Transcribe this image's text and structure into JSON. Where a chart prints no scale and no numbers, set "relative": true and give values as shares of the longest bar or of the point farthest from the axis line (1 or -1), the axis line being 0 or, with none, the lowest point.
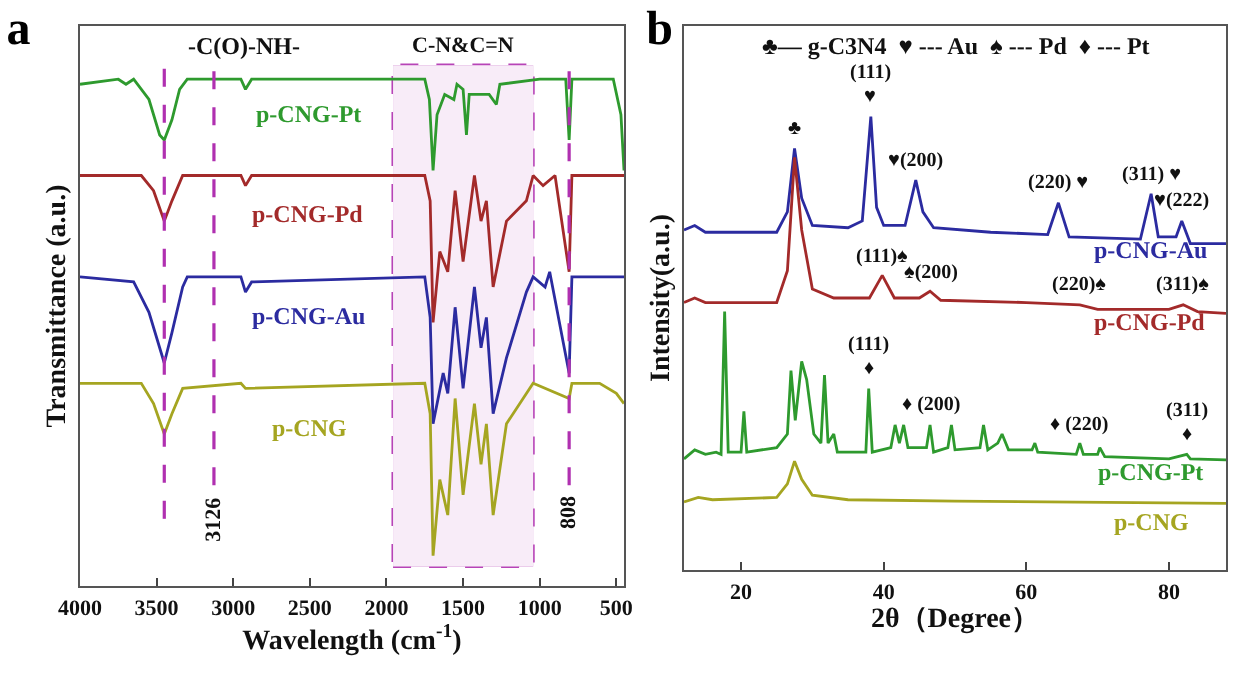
{
  "chart_data": [
    {
      "type": "line",
      "title": "a",
      "xlabel": "Wavelength (cm$^{-1}$)",
      "ylabel": "Transmittance (a.u.)",
      "relative": true,
      "tick_labels": "x",
      "xlim": [
        4000,
        450
      ],
      "xticks": [
        4000,
        3500,
        3000,
        2500,
        2000,
        1500,
        1000,
        500
      ],
      "series": [
        {
          "name": "p-CNG-Pt",
          "color": "#2e9a2e",
          "x": [
            4000,
            3750,
            3700,
            3650,
            3550,
            3480,
            3450,
            3400,
            3350,
            3300,
            2950,
            2920,
            2880,
            1750,
            1720,
            1696,
            1670,
            1620,
            1560,
            1540,
            1500,
            1478,
            1460,
            1330,
            1283,
            1260,
            1000,
            900,
            830,
            808,
            790,
            600,
            520,
            470,
            450
          ],
          "values": [
            0.99,
            1.0,
            0.99,
            1.0,
            0.96,
            0.89,
            0.88,
            0.92,
            0.98,
            1.0,
            1.0,
            0.98,
            1.0,
            1.0,
            0.96,
            0.82,
            0.93,
            0.97,
            0.96,
            0.99,
            0.98,
            0.89,
            0.97,
            0.97,
            0.95,
            0.99,
            1.0,
            1.0,
            1.0,
            0.88,
            1.0,
            1.0,
            1.0,
            0.93,
            0.82
          ]
        },
        {
          "name": "p-CNG-Pd",
          "color": "#a32a2a",
          "x": [
            4000,
            3600,
            3520,
            3450,
            3400,
            3330,
            2950,
            2920,
            2880,
            1750,
            1715,
            1696,
            1652,
            1600,
            1552,
            1500,
            1426,
            1383,
            1348,
            1304,
            1217,
            1087,
            1043,
            978,
            900,
            808,
            790,
            600,
            450
          ],
          "values": [
            0.81,
            0.81,
            0.78,
            0.72,
            0.76,
            0.81,
            0.81,
            0.79,
            0.81,
            0.81,
            0.76,
            0.52,
            0.66,
            0.62,
            0.78,
            0.64,
            0.81,
            0.72,
            0.76,
            0.59,
            0.72,
            0.76,
            0.81,
            0.79,
            0.81,
            0.62,
            0.81,
            0.81,
            0.81
          ]
        },
        {
          "name": "p-CNG-Au",
          "color": "#2b2ba0",
          "x": [
            4000,
            3650,
            3550,
            3450,
            3400,
            3330,
            3300,
            2950,
            2920,
            2880,
            1750,
            1715,
            1696,
            1630,
            1600,
            1552,
            1500,
            1426,
            1383,
            1348,
            1304,
            1217,
            1087,
            1043,
            965,
            935,
            808,
            790,
            600,
            450
          ],
          "values": [
            0.61,
            0.6,
            0.54,
            0.44,
            0.5,
            0.59,
            0.61,
            0.61,
            0.58,
            0.6,
            0.61,
            0.53,
            0.32,
            0.42,
            0.38,
            0.55,
            0.39,
            0.59,
            0.47,
            0.53,
            0.34,
            0.45,
            0.58,
            0.61,
            0.59,
            0.62,
            0.42,
            0.61,
            0.61,
            0.61
          ]
        },
        {
          "name": "p-CNG",
          "color": "#a5a521",
          "x": [
            4000,
            3600,
            3520,
            3450,
            3400,
            3330,
            2950,
            2920,
            1750,
            1715,
            1696,
            1652,
            1600,
            1552,
            1500,
            1426,
            1383,
            1348,
            1304,
            1217,
            1087,
            1043,
            808,
            790,
            609,
            500,
            450
          ],
          "values": [
            0.4,
            0.4,
            0.36,
            0.3,
            0.34,
            0.39,
            0.4,
            0.39,
            0.4,
            0.34,
            0.06,
            0.21,
            0.14,
            0.37,
            0.18,
            0.36,
            0.24,
            0.32,
            0.14,
            0.32,
            0.38,
            0.4,
            0.37,
            0.4,
            0.4,
            0.38,
            0.36
          ]
        }
      ],
      "ref_lines": [
        {
          "axis": "x",
          "value": 3450,
          "color": "#b030b0",
          "line_style": "dashed"
        },
        {
          "axis": "x",
          "value": 3126,
          "label": "3126",
          "color": "#b030b0",
          "line_style": "dashed"
        },
        {
          "axis": "x",
          "value": 808,
          "label": "808",
          "color": "#b030b0",
          "line_style": "dashed"
        }
      ],
      "bands": [
        {
          "axis": "x",
          "from": 1957,
          "to": 1043,
          "label": "C-N&C=N",
          "color": "#b030b0"
        }
      ],
      "annotations": [
        "-C(O)-NH-"
      ]
    },
    {
      "type": "line",
      "title": "b",
      "xlabel": "2θ（Degree）",
      "ylabel": "Intensity(a.u.)",
      "relative": true,
      "tick_labels": "x",
      "xlim": [
        12,
        88
      ],
      "xticks": [
        20,
        40,
        60,
        80
      ],
      "series": [
        {
          "name": "p-CNG-Au",
          "color": "#2b2ba0",
          "x": [
            12,
            13.5,
            15,
            20,
            25,
            26.5,
            27.5,
            28.5,
            30,
            35,
            37,
            38.2,
            39,
            40,
            43,
            44.5,
            45.5,
            47,
            55,
            63,
            64.5,
            66,
            76,
            77.5,
            78.5,
            81,
            81.8,
            83,
            88
          ],
          "values": [
            0.75,
            0.76,
            0.745,
            0.745,
            0.745,
            0.79,
            0.93,
            0.82,
            0.76,
            0.755,
            0.77,
            1.0,
            0.8,
            0.76,
            0.76,
            0.86,
            0.79,
            0.755,
            0.745,
            0.74,
            0.81,
            0.735,
            0.73,
            0.83,
            0.735,
            0.735,
            0.77,
            0.72,
            0.72
          ]
        },
        {
          "name": "p-CNG-Pd",
          "color": "#a32a2a",
          "x": [
            12,
            13.5,
            15,
            25,
            26.5,
            27.5,
            28.5,
            30,
            33,
            38,
            39.8,
            41.5,
            45,
            46.5,
            48,
            60,
            67.5,
            70,
            80,
            82,
            84,
            88
          ],
          "values": [
            0.59,
            0.6,
            0.59,
            0.59,
            0.66,
            0.91,
            0.75,
            0.62,
            0.6,
            0.6,
            0.65,
            0.6,
            0.6,
            0.615,
            0.595,
            0.59,
            0.585,
            0.575,
            0.575,
            0.585,
            0.57,
            0.566
          ]
        },
        {
          "name": "p-CNG-Pt",
          "color": "#2e9a2e",
          "x": [
            12,
            13.5,
            15,
            16.5,
            17.2,
            17.7,
            18.2,
            20,
            20.4,
            20.8,
            25,
            26.5,
            27,
            27.6,
            28.5,
            29.2,
            30.2,
            31.2,
            31.7,
            32.2,
            33,
            33.5,
            37.5,
            37.9,
            38.4,
            41,
            41.6,
            42.2,
            42.8,
            43.4,
            46,
            46.5,
            47,
            49,
            49.5,
            50,
            53.5,
            54,
            54.6,
            56,
            56.6,
            57.5,
            60.8,
            61.2,
            61.6,
            67,
            67.5,
            68,
            70,
            70.3,
            71,
            80,
            82.5,
            83,
            88
          ],
          "values": [
            0.245,
            0.265,
            0.255,
            0.26,
            0.255,
            0.57,
            0.26,
            0.26,
            0.35,
            0.26,
            0.27,
            0.3,
            0.44,
            0.33,
            0.46,
            0.42,
            0.3,
            0.28,
            0.43,
            0.28,
            0.3,
            0.26,
            0.26,
            0.4,
            0.26,
            0.27,
            0.32,
            0.28,
            0.32,
            0.27,
            0.27,
            0.32,
            0.26,
            0.27,
            0.32,
            0.265,
            0.27,
            0.32,
            0.265,
            0.28,
            0.3,
            0.265,
            0.265,
            0.28,
            0.26,
            0.255,
            0.28,
            0.255,
            0.255,
            0.27,
            0.25,
            0.245,
            0.255,
            0.245,
            0.243
          ]
        },
        {
          "name": "p-CNG",
          "color": "#a5a521",
          "x": [
            12,
            14,
            16,
            25,
            26.5,
            27.5,
            28.5,
            30,
            35,
            50,
            88
          ],
          "values": [
            0.15,
            0.16,
            0.155,
            0.16,
            0.19,
            0.24,
            0.2,
            0.165,
            0.155,
            0.152,
            0.147
          ]
        }
      ],
      "annotations": [
        "♣— g-C3N4  ♥ --- Au  ♠ --- Pd  ♦ --- Pt",
        {
          "text": "♣",
          "x": 27.5,
          "y": 0.93
        },
        {
          "text": "♥",
          "x": 38.2,
          "y": 1.0
        },
        {
          "text": "(111)",
          "x": 38.2,
          "y": 1.0
        },
        {
          "text": "♥(200)",
          "x": 44.5,
          "y": 0.86
        },
        {
          "text": "(220) ♥",
          "x": 64.5,
          "y": 0.81
        },
        {
          "text": "(311) ♥",
          "x": 77.5,
          "y": 0.83
        },
        {
          "text": "♥(222)",
          "x": 81.8,
          "y": 0.77
        },
        {
          "text": "(111)♠",
          "x": 39.8,
          "y": 0.65
        },
        {
          "text": "♠(200)",
          "x": 46.5,
          "y": 0.615
        },
        {
          "text": "(220)♠",
          "x": 67.5,
          "y": 0.585
        },
        {
          "text": "(311)♠",
          "x": 82,
          "y": 0.585
        },
        {
          "text": "♦",
          "x": 37.9,
          "y": 0.4
        },
        {
          "text": "(111)",
          "x": 37.9,
          "y": 0.4
        },
        {
          "text": "♦ (200)",
          "x": 46.5,
          "y": 0.32
        },
        {
          "text": "♦ (220)",
          "x": 67.5,
          "y": 0.28
        },
        {
          "text": "♦",
          "x": 82.5,
          "y": 0.255
        },
        {
          "text": "(311)",
          "x": 82.5,
          "y": 0.255
        }
      ]
    }
  ]
}
